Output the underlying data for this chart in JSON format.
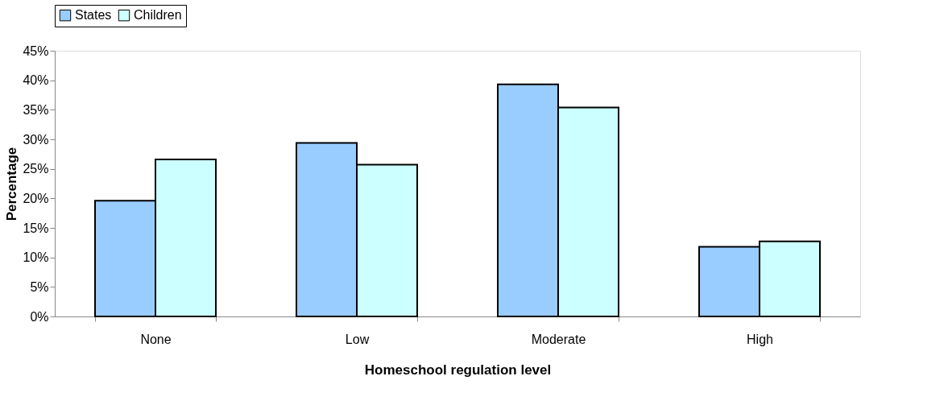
{
  "chart_data": {
    "type": "bar",
    "xlabel": "Homeschool regulation level",
    "ylabel": "Percentage",
    "categories": [
      "None",
      "Low",
      "Moderate",
      "High"
    ],
    "series": [
      {
        "name": "States",
        "color": "#99ccff",
        "values": [
          19.6,
          29.4,
          39.3,
          11.8
        ]
      },
      {
        "name": "Children",
        "color": "#ccffff",
        "values": [
          26.6,
          25.7,
          35.4,
          12.7
        ]
      }
    ],
    "ylim": [
      0,
      45
    ],
    "yticks": [
      {
        "value": 0,
        "label": "0%"
      },
      {
        "value": 5,
        "label": "5%"
      },
      {
        "value": 10,
        "label": "10%"
      },
      {
        "value": 15,
        "label": "15%"
      },
      {
        "value": 20,
        "label": "20%"
      },
      {
        "value": 25,
        "label": "25%"
      },
      {
        "value": 30,
        "label": "30%"
      },
      {
        "value": 35,
        "label": "35%"
      },
      {
        "value": 40,
        "label": "40%"
      },
      {
        "value": 45,
        "label": "45%"
      }
    ],
    "grid": false,
    "legend": "top"
  }
}
